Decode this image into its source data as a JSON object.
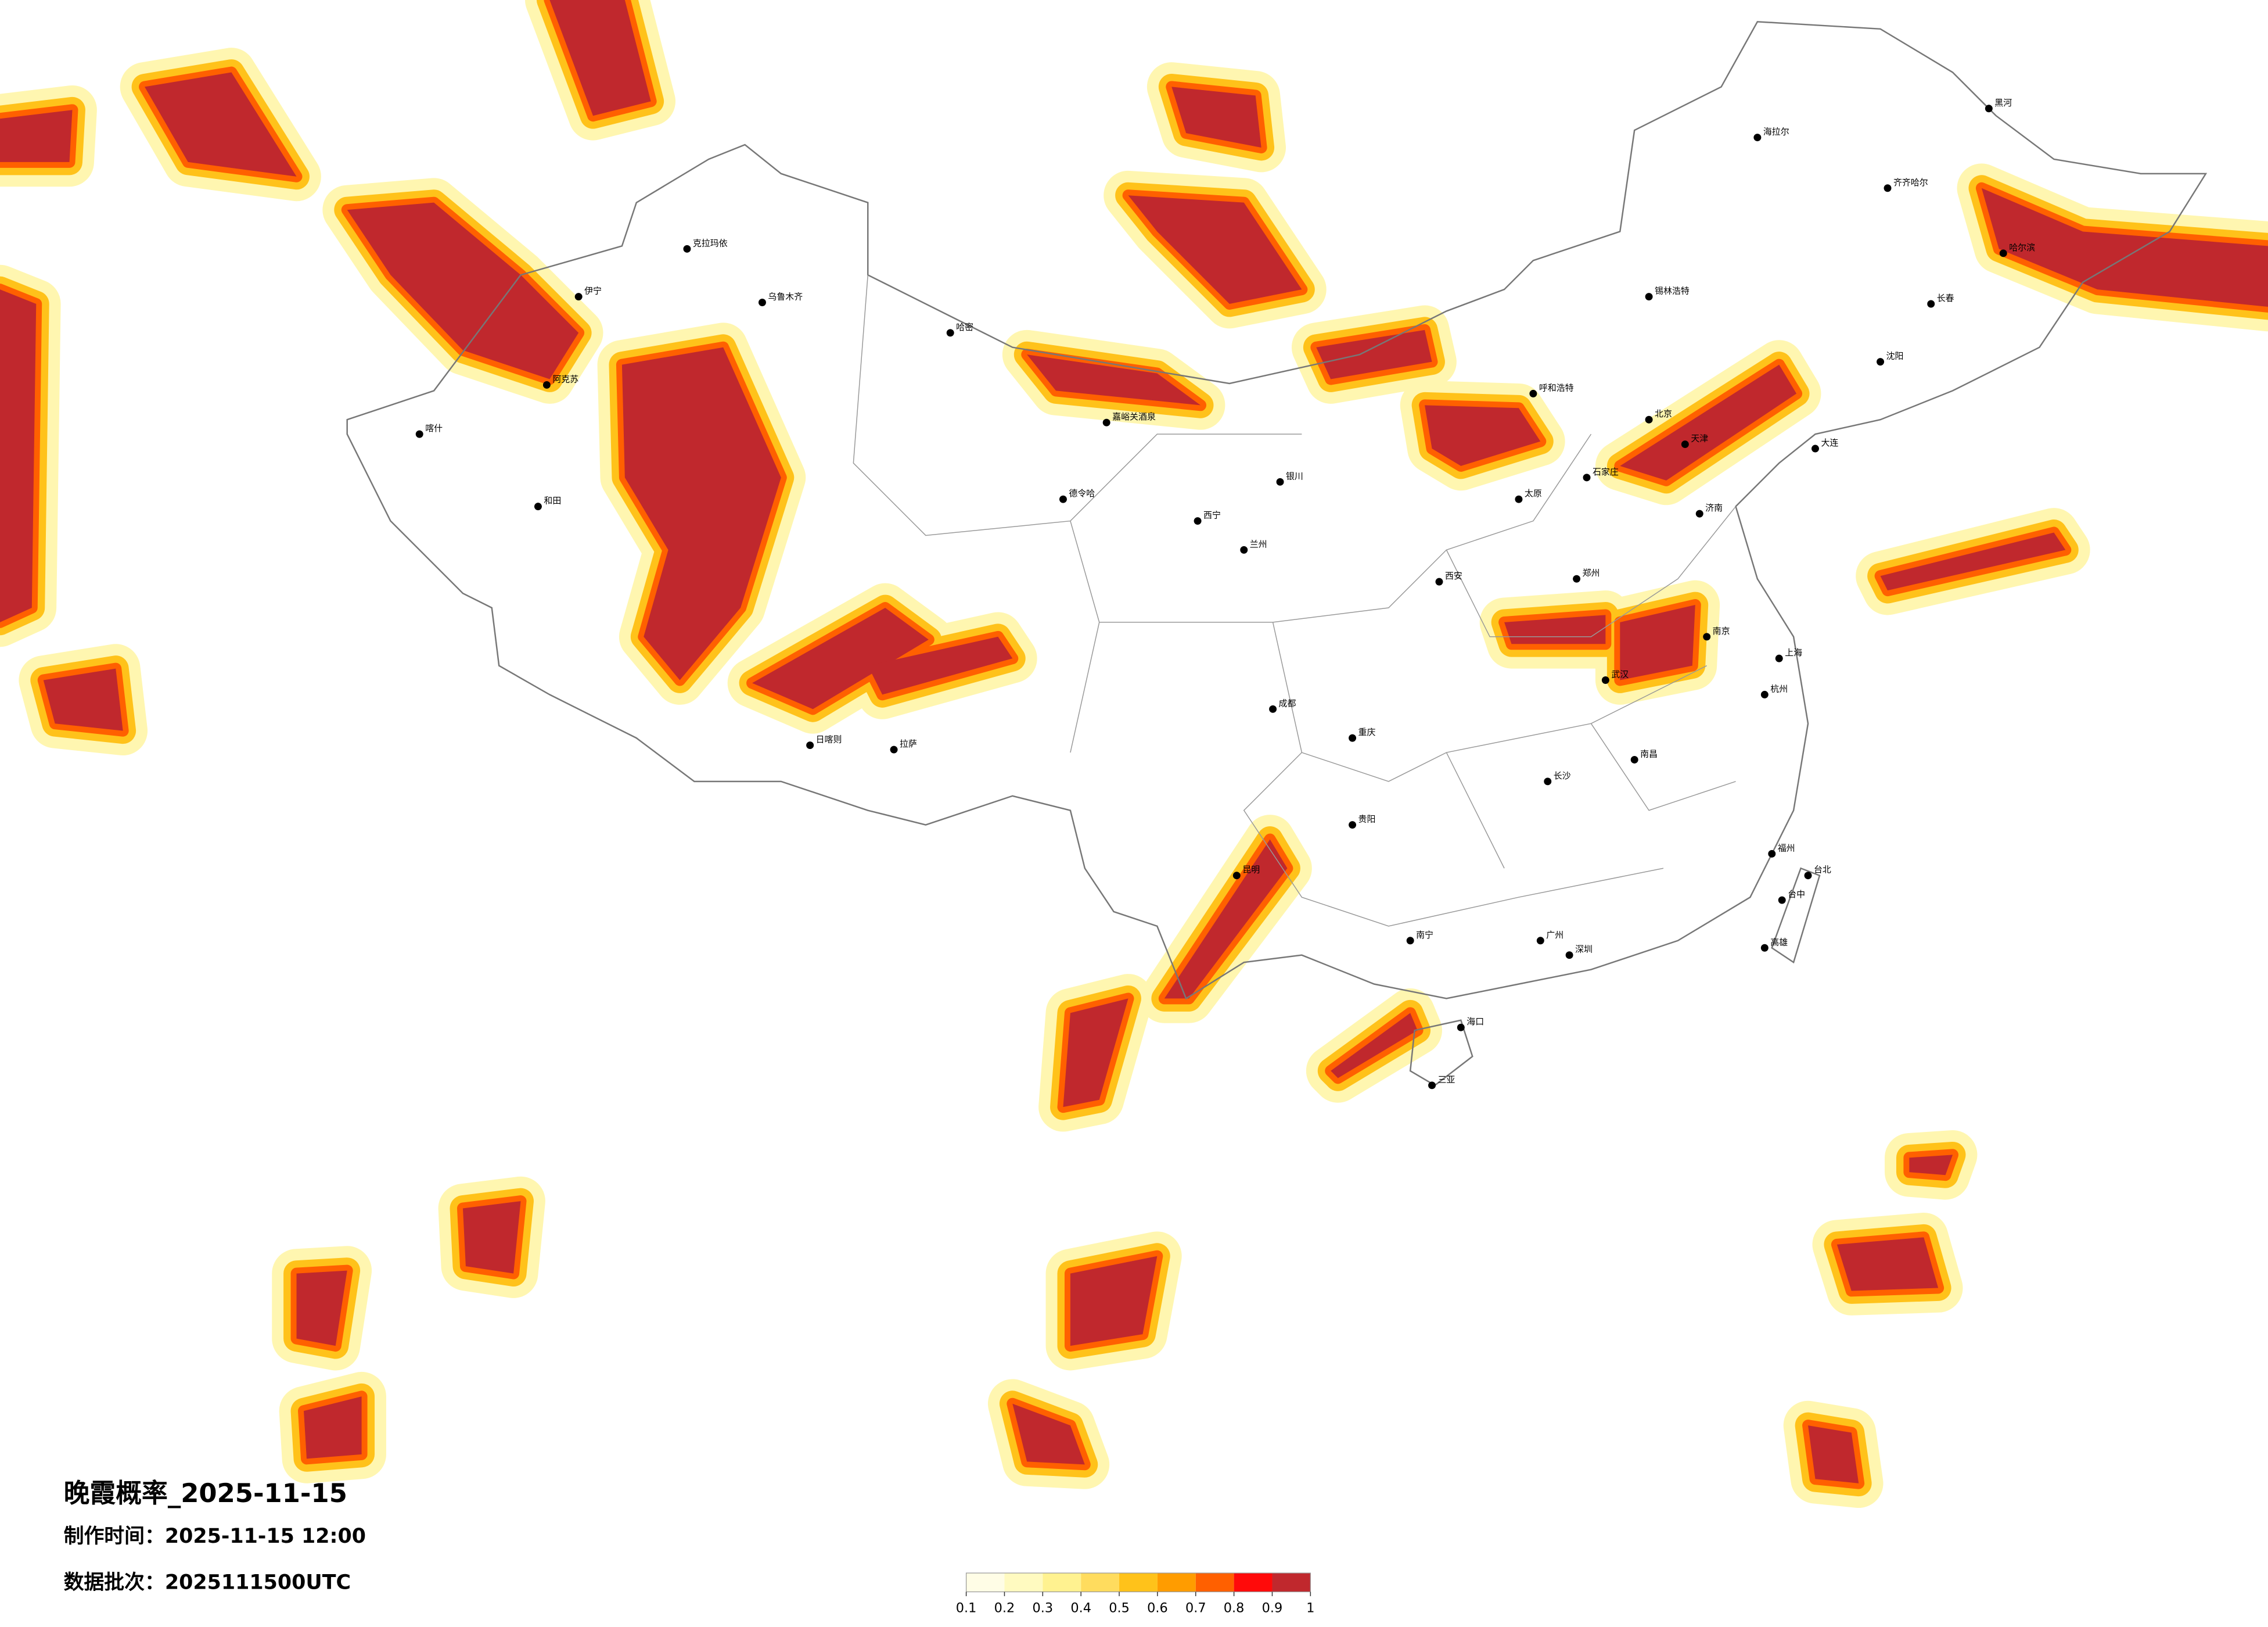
{
  "title": "晚霞概率_2025-11-15",
  "produced": "制作时间：2025-11-15 12:00",
  "batch": "数据批次：2025111500UTC",
  "cities": [
    "克拉玛依",
    "乌鲁木齐",
    "伊宁",
    "阿克苏",
    "喀什",
    "和田",
    "哈密",
    "嘉峪关酒泉",
    "德令哈",
    "日喀则",
    "拉萨",
    "西宁",
    "兰州",
    "银川",
    "呼和浩特",
    "锡林浩特",
    "北京",
    "天津",
    "石家庄",
    "太原",
    "济南",
    "郑州",
    "西安",
    "武汉",
    "长沙",
    "南昌",
    "南京",
    "上海",
    "杭州",
    "福州",
    "广州",
    "深圳",
    "南宁",
    "海口",
    "三亚",
    "昆明",
    "贵阳",
    "成都",
    "重庆",
    "哈尔滨",
    "长春",
    "沈阳",
    "大连",
    "齐齐哈尔",
    "黑河",
    "海拉尔",
    "台北",
    "台中",
    "高雄"
  ],
  "legend": {
    "ticks": [
      0.1,
      0.2,
      0.3,
      0.4,
      0.5,
      0.6,
      0.7,
      0.8,
      0.9,
      1
    ],
    "colors": [
      "#fffde6",
      "#fffac0",
      "#fff290",
      "#ffdc5e",
      "#ffc21a",
      "#ff9c00",
      "#ff6000",
      "#ff0a0a",
      "#c0282d"
    ]
  }
}
